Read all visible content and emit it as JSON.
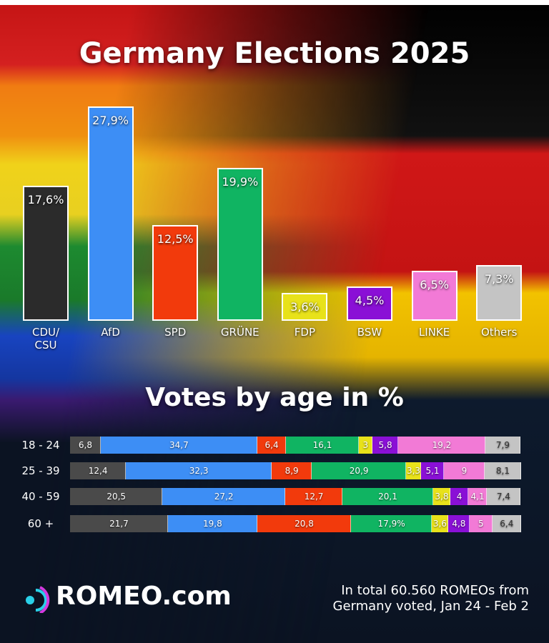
{
  "chart_data": [
    {
      "type": "bar",
      "title": "Germany Elections 2025",
      "categories": [
        "CDU/ CSU",
        "AfD",
        "SPD",
        "GRÜNE",
        "FDP",
        "BSW",
        "LINKE",
        "Others"
      ],
      "values": [
        17.6,
        27.9,
        12.5,
        19.9,
        3.6,
        4.5,
        6.5,
        7.3
      ],
      "value_labels": [
        "17,6%",
        "27,9%",
        "12,5%",
        "19,9%",
        "3,6%",
        "4,5%",
        "6,5%",
        "7,3%"
      ],
      "colors": [
        "#2b2b2b",
        "#3d8ef5",
        "#f23a0c",
        "#10b462",
        "#e8e21a",
        "#8a10d6",
        "#f27ad6",
        "#c4c4c4"
      ]
    },
    {
      "type": "stacked-bar-horizontal",
      "title": "Votes by age in %",
      "categories": [
        "18 - 24",
        "25 - 39",
        "40 - 59",
        "60 +"
      ],
      "series": [
        {
          "color": "#4a4a4a",
          "values": [
            6.8,
            12.4,
            20.5,
            21.7
          ],
          "value_labels": [
            "6,8",
            "12,4",
            "20,5",
            "21,7"
          ]
        },
        {
          "color": "#3d8ef5",
          "values": [
            34.7,
            32.3,
            27.2,
            19.8
          ],
          "value_labels": [
            "34,7",
            "32,3",
            "27,2",
            "19,8"
          ]
        },
        {
          "color": "#f23a0c",
          "values": [
            6.4,
            8.9,
            12.7,
            20.8
          ],
          "value_labels": [
            "6,4",
            "8,9",
            "12,7",
            "20,8"
          ]
        },
        {
          "color": "#10b462",
          "values": [
            16.1,
            20.9,
            20.1,
            17.9
          ],
          "value_labels": [
            "16,1",
            "20,9",
            "20,1",
            "17,9%"
          ]
        },
        {
          "color": "#e8e21a",
          "values": [
            3,
            3.3,
            3.8,
            3.6
          ],
          "value_labels": [
            "3",
            "3,3",
            "3,8",
            "3,6"
          ]
        },
        {
          "color": "#8a10d6",
          "values": [
            5.8,
            5.1,
            4,
            4.8
          ],
          "value_labels": [
            "5,8",
            "5,1",
            "4",
            "4,8"
          ]
        },
        {
          "color": "#f27ad6",
          "values": [
            19.2,
            9,
            4.1,
            5
          ],
          "value_labels": [
            "19,2",
            "9",
            "4,1",
            "5"
          ]
        },
        {
          "color": "#c4c4c4",
          "values": [
            7.9,
            8.1,
            7.4,
            6.4
          ],
          "value_labels": [
            "7,9",
            "8,1",
            "7,4",
            "6,4"
          ]
        }
      ]
    }
  ],
  "footer": {
    "logo": "ROMEO.com",
    "note": "In total 60.560 ROMEOs from Germany voted, Jan 24 - Feb 2"
  }
}
